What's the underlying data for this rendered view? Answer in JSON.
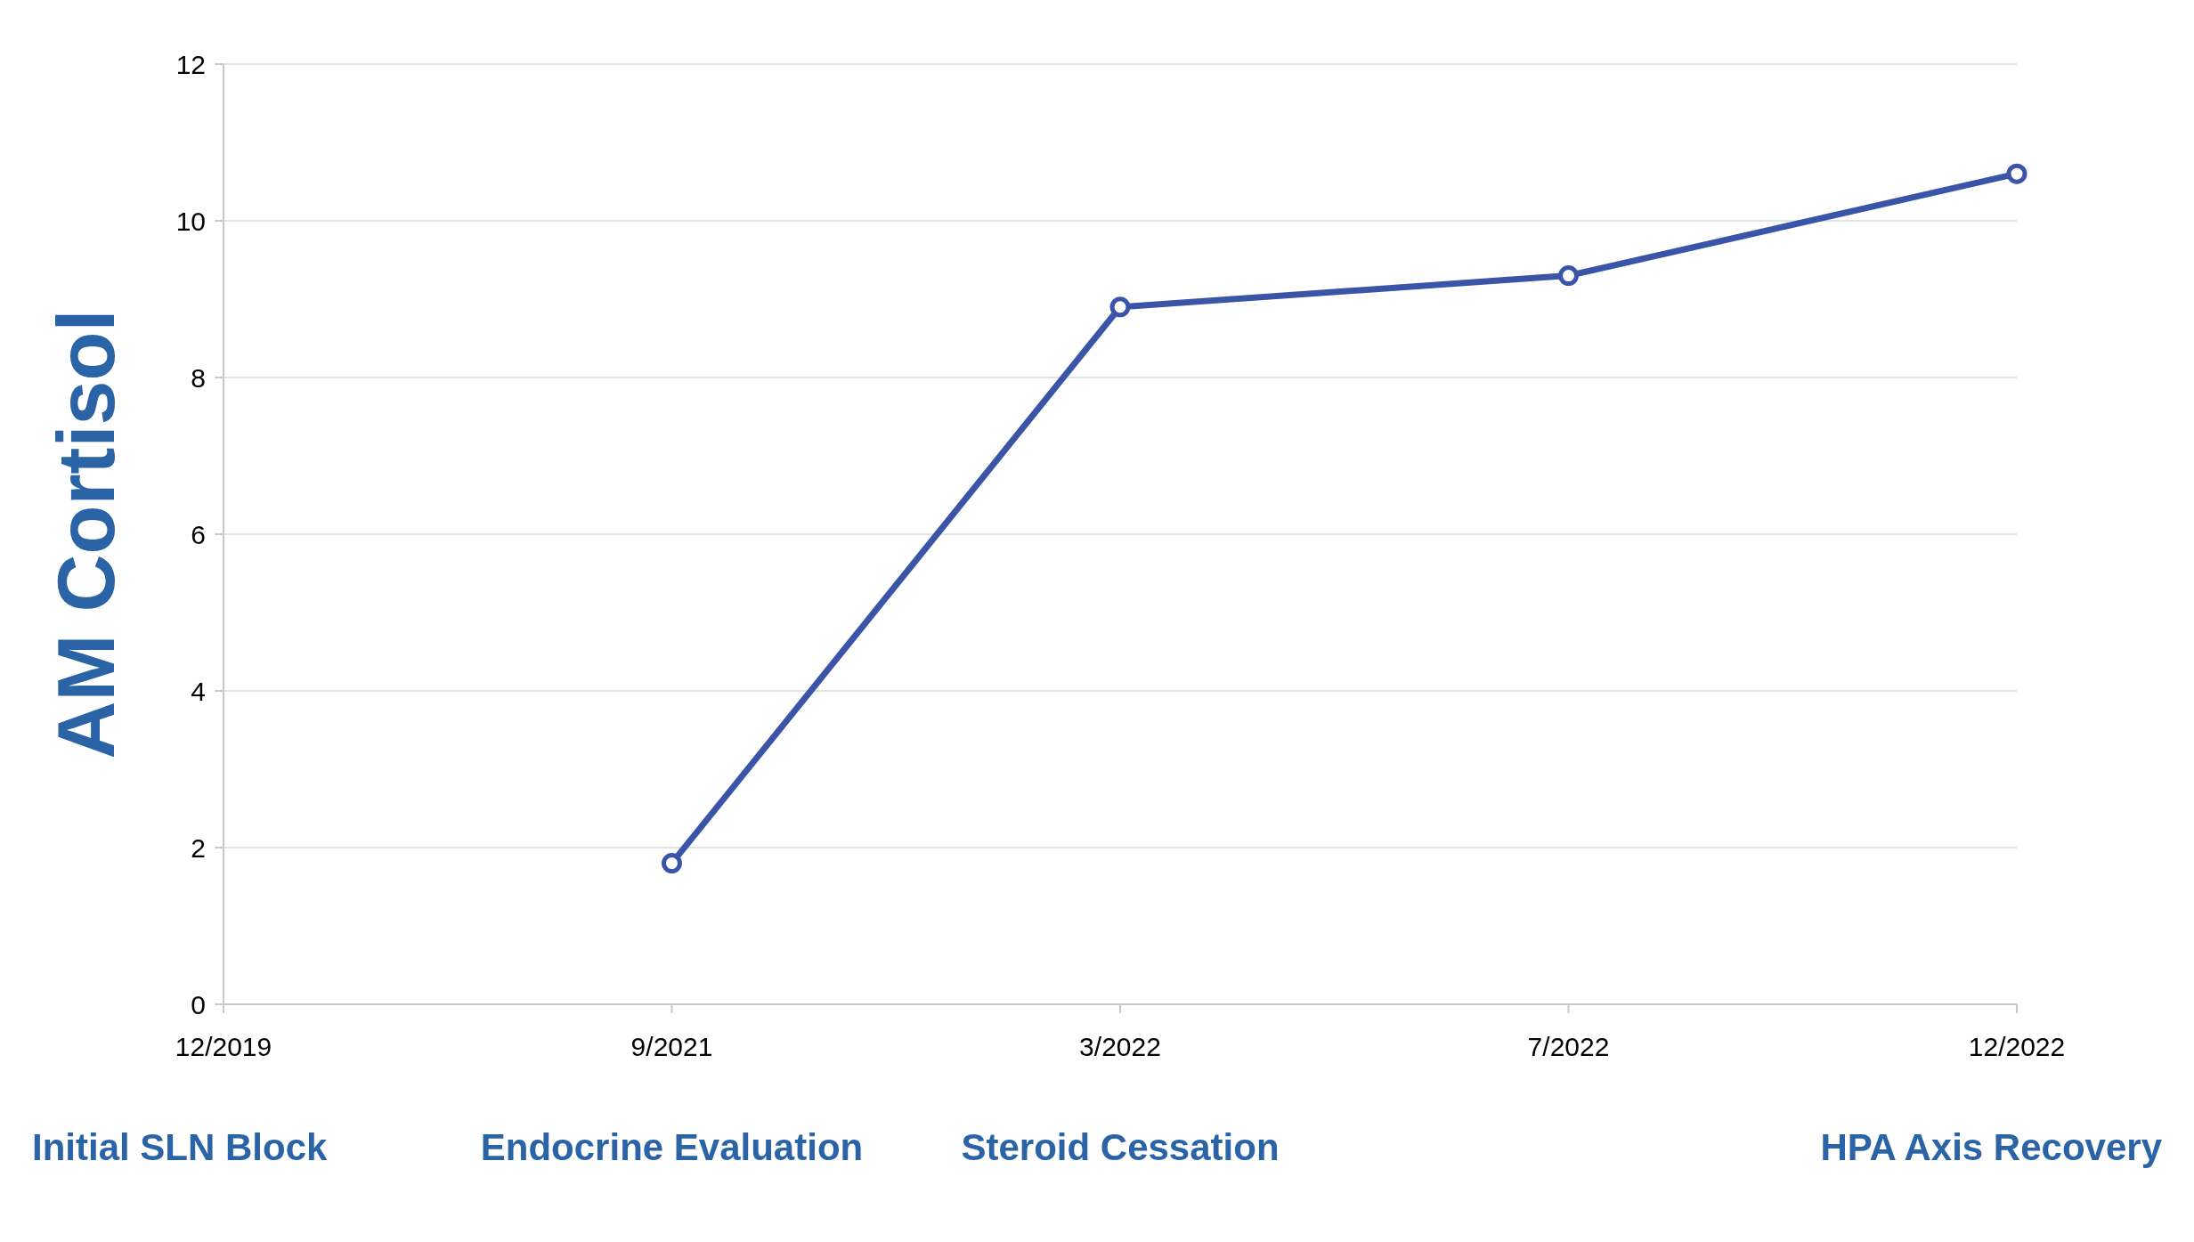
{
  "chart_data": {
    "type": "line",
    "ylabel": "AM Cortisol",
    "categories": [
      "12/2019",
      "9/2021",
      "3/2022",
      "7/2022",
      "12/2022"
    ],
    "series": [
      {
        "color": "#3a55a8",
        "values": [
          null,
          1.8,
          8.9,
          9.3,
          10.6
        ]
      }
    ],
    "ylim": [
      0,
      12
    ],
    "yticks": [
      0,
      2,
      4,
      6,
      8,
      10,
      12
    ],
    "grid": "y",
    "marker": "circle",
    "line_style": "solid",
    "annotations": [
      "Initial SLN Block",
      "Endocrine Evaluation",
      "Steroid Cessation",
      "HPA Axis Recovery"
    ]
  }
}
